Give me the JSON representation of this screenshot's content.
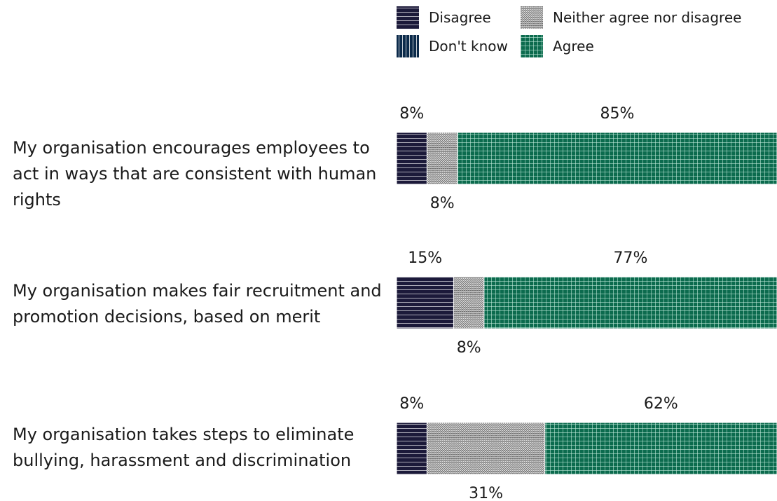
{
  "chart_data": {
    "type": "bar",
    "orientation": "horizontal",
    "stacked": true,
    "legend_position": "top-right",
    "legend": [
      "Disagree",
      "Neither agree nor disagree",
      "Don't know",
      "Agree"
    ],
    "categories": [
      "My organisation encourages employees to act in ways that are consistent with human rights",
      "My organisation makes fair recruitment and promotion decisions, based on merit",
      "My organisation takes steps to eliminate bullying, harassment and discrimination"
    ],
    "series": [
      {
        "name": "Disagree",
        "values": [
          8,
          15,
          8
        ],
        "labels": [
          "8%",
          "15%",
          "8%"
        ],
        "color": "#1c1a3a"
      },
      {
        "name": "Neither agree nor disagree",
        "values": [
          8,
          8,
          31
        ],
        "labels": [
          "8%",
          "8%",
          "31%"
        ],
        "color": "#8a8a8a"
      },
      {
        "name": "Don't know",
        "values": [
          0,
          0,
          0
        ],
        "labels": [
          "",
          "",
          ""
        ],
        "color": "#0b2a4a"
      },
      {
        "name": "Agree",
        "values": [
          85,
          77,
          62
        ],
        "labels": [
          "85%",
          "77%",
          "62%"
        ],
        "color": "#0c6b4e"
      }
    ],
    "xlim": [
      0,
      100
    ],
    "grid": false
  }
}
